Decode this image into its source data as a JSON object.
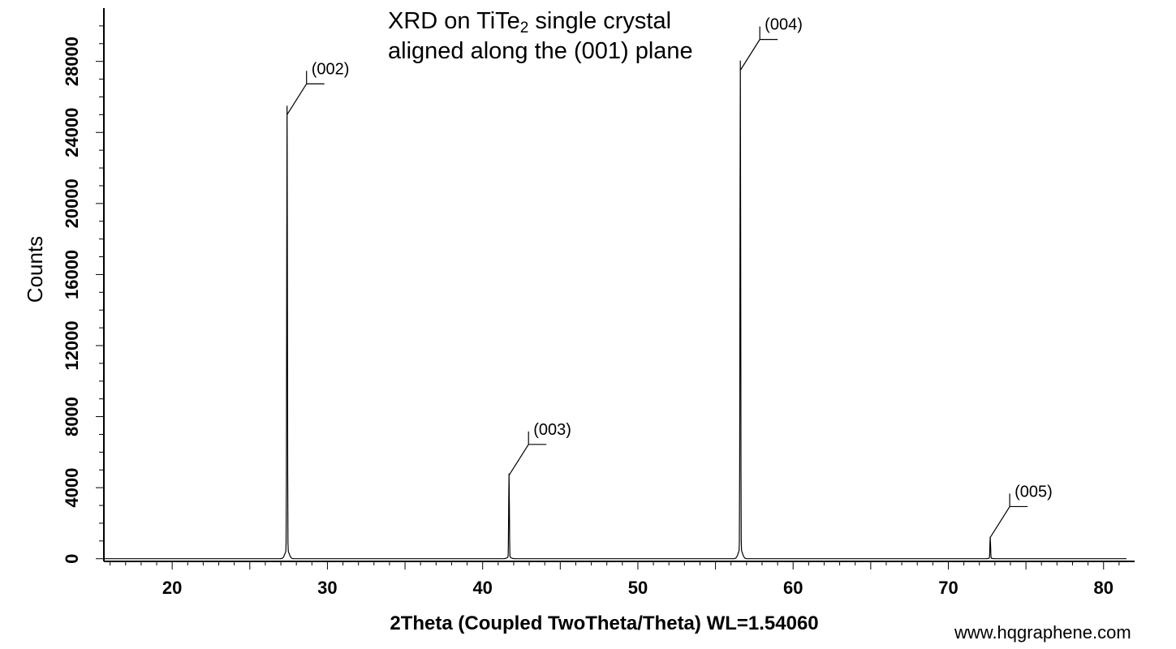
{
  "chart_data": {
    "type": "line",
    "title_main": "XRD on TiTe",
    "title_subscript": "2",
    "title_rest": " single crystal",
    "title_line2": "aligned along the (001) plane",
    "xlabel": "2Theta (Coupled TwoTheta/Theta) WL=1.54060",
    "ylabel": "Counts",
    "xlim": [
      15.6,
      82
    ],
    "ylim": [
      -150,
      31000
    ],
    "x_ticks": [
      20,
      30,
      40,
      50,
      60,
      70,
      80
    ],
    "y_ticks": [
      0,
      4000,
      8000,
      12000,
      16000,
      20000,
      24000,
      28000
    ],
    "grid": false,
    "series": [
      {
        "peaks": [
          {
            "x": 27.4,
            "y": 25000,
            "label": "(002)"
          },
          {
            "x": 41.7,
            "y": 4700,
            "label": "(003)"
          },
          {
            "x": 56.6,
            "y": 27500,
            "label": "(004)"
          },
          {
            "x": 72.7,
            "y": 1200,
            "label": "(005)"
          }
        ]
      }
    ]
  },
  "watermark": "www.hqgraphene.com"
}
